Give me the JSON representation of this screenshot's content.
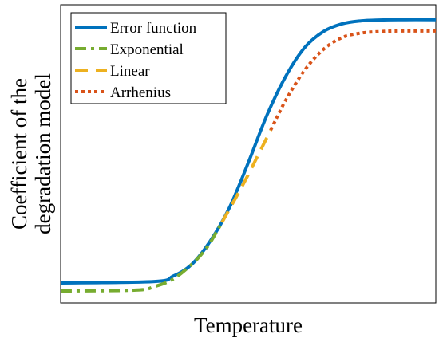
{
  "chart_data": {
    "type": "line",
    "title": "",
    "xlabel": "Temperature",
    "ylabel_lines": [
      "Coefficient of the",
      "degradation model"
    ],
    "xlim": [
      0,
      1
    ],
    "ylim": [
      0,
      1
    ],
    "x_ticks_visible": false,
    "y_ticks_visible": false,
    "grid": false,
    "legend_position": "top-left",
    "series": [
      {
        "name": "Error function",
        "color": "#0072bd",
        "style": "solid",
        "x": [
          0.0,
          0.25,
          0.3,
          0.35,
          0.4,
          0.45,
          0.5,
          0.55,
          0.6,
          0.65,
          0.7,
          0.75,
          0.8,
          0.85,
          0.9,
          1.0
        ],
        "y": [
          0.067,
          0.072,
          0.09,
          0.13,
          0.21,
          0.32,
          0.47,
          0.63,
          0.76,
          0.856,
          0.91,
          0.936,
          0.946,
          0.949,
          0.95,
          0.95
        ]
      },
      {
        "name": "Exponential",
        "color": "#77ac30",
        "style": "dashdot",
        "x": [
          0.0,
          0.2,
          0.25,
          0.3,
          0.35,
          0.38,
          0.4,
          0.43
        ],
        "y": [
          0.04,
          0.043,
          0.055,
          0.08,
          0.13,
          0.17,
          0.205,
          0.27
        ]
      },
      {
        "name": "Linear",
        "color": "#edb120",
        "style": "dashed",
        "x": [
          0.43,
          0.47,
          0.5,
          0.52,
          0.56
        ],
        "y": [
          0.27,
          0.36,
          0.43,
          0.48,
          0.58
        ]
      },
      {
        "name": "Arrhenius",
        "color": "#d95319",
        "style": "dotted",
        "x": [
          0.56,
          0.6,
          0.65,
          0.7,
          0.75,
          0.8,
          0.85,
          0.9,
          1.0
        ],
        "y": [
          0.58,
          0.68,
          0.78,
          0.85,
          0.89,
          0.905,
          0.91,
          0.912,
          0.912
        ]
      }
    ]
  }
}
